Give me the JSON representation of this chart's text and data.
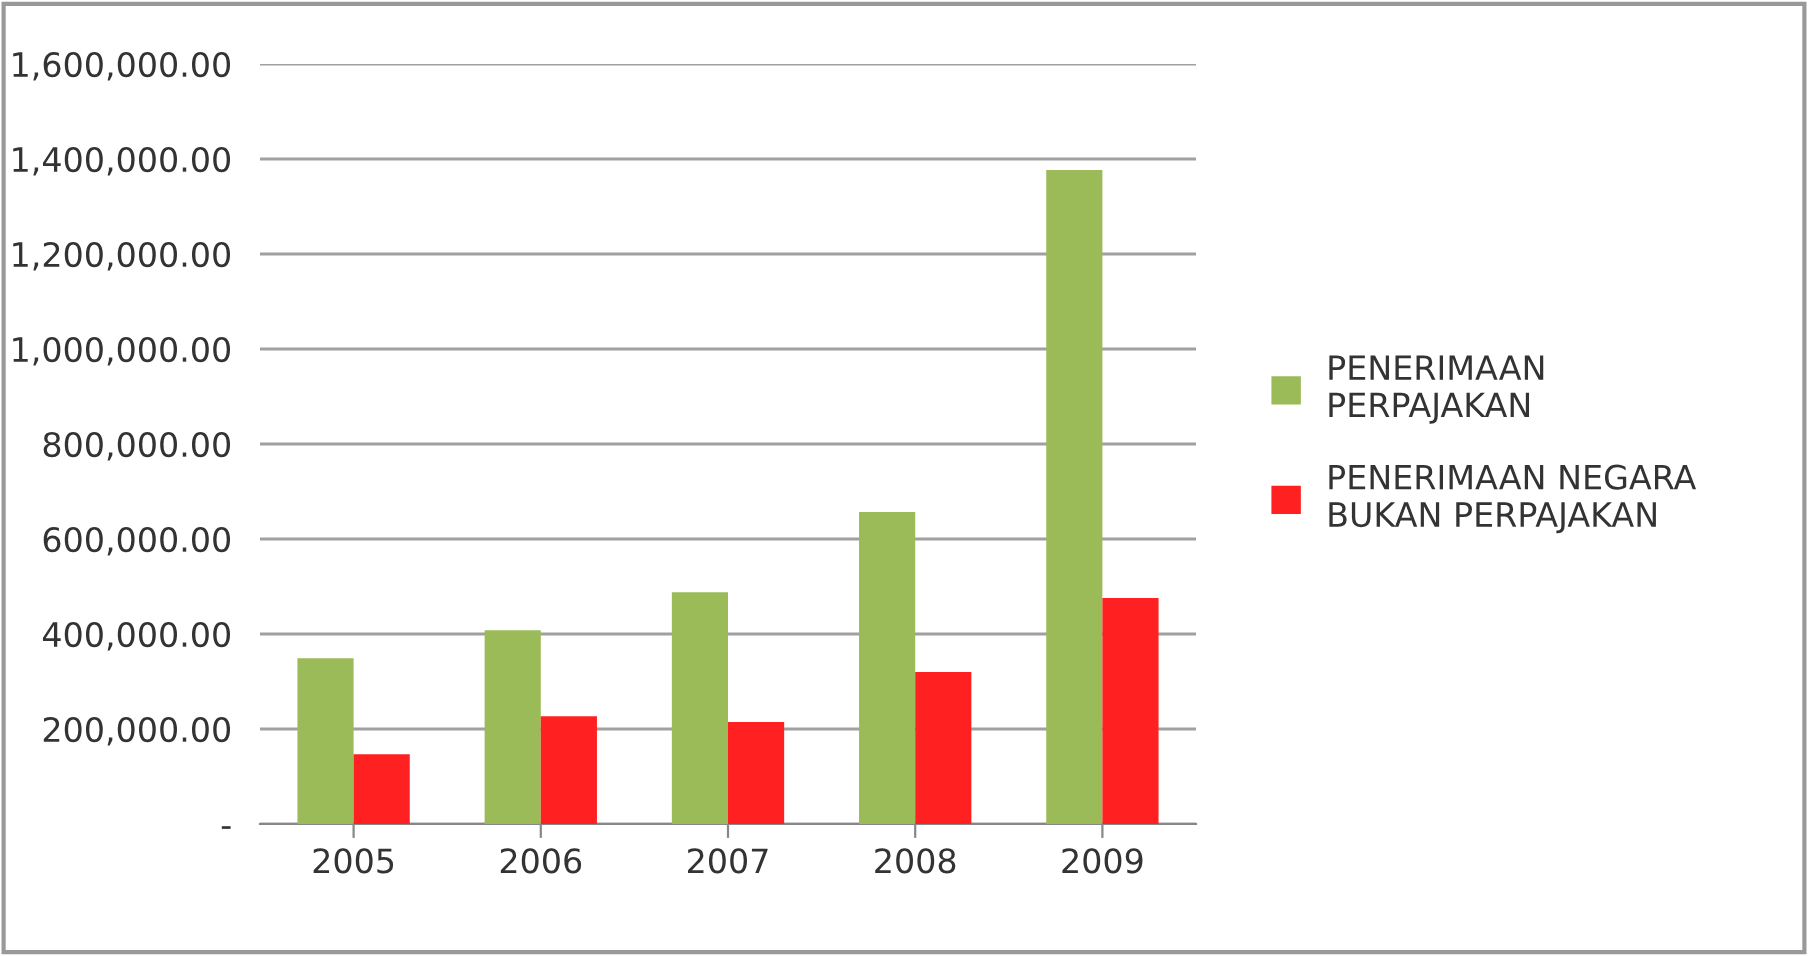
{
  "chart_data": {
    "type": "bar",
    "categories": [
      "2005",
      "2006",
      "2007",
      "2008",
      "2009"
    ],
    "series": [
      {
        "name": "PENERIMAAN PERPAJAKAN",
        "color": "#9bbb59",
        "values": [
          349000,
          408000,
          488000,
          657000,
          1377000
        ]
      },
      {
        "name": "PENERIMAAN NEGARA BUKAN PERPAJAKAN",
        "color": "#ff2121",
        "values": [
          147000,
          227000,
          215000,
          320000,
          476000
        ]
      }
    ],
    "ylim": [
      0,
      1600000
    ],
    "yticks": [
      {
        "value": 0,
        "label": "-"
      },
      {
        "value": 200000,
        "label": "200,000.00"
      },
      {
        "value": 400000,
        "label": "400,000.00"
      },
      {
        "value": 600000,
        "label": "600,000.00"
      },
      {
        "value": 800000,
        "label": "800,000.00"
      },
      {
        "value": 1000000,
        "label": "1,000,000.00"
      },
      {
        "value": 1200000,
        "label": "1,200,000.00"
      },
      {
        "value": 1400000,
        "label": "1,400,000.00"
      },
      {
        "value": 1600000,
        "label": "1,600,000.00"
      }
    ],
    "grid": "y",
    "legend": "right"
  }
}
